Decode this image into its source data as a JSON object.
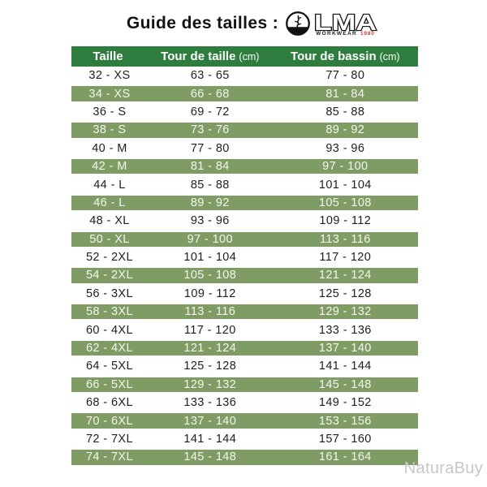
{
  "header": {
    "title": "Guide des tailles :",
    "logo": {
      "name": "LMA",
      "subtext": "WORKWEAR",
      "year": "1980",
      "accent_color": "#d63226"
    }
  },
  "colors": {
    "header_green": "#2e7d3e",
    "row_green": "#7e9c63",
    "row_text_dark": "#1e1e1e",
    "row_text_light": "#f6f6f0",
    "watermark_gray": "#c7c7c7"
  },
  "watermark": "NaturaBuy",
  "chart_data": {
    "type": "table",
    "title": "Guide des tailles",
    "headers": [
      {
        "label": "Taille",
        "unit": ""
      },
      {
        "label": "Tour de taille",
        "unit": "(cm)"
      },
      {
        "label": "Tour de bassin",
        "unit": "(cm)"
      }
    ],
    "rows": [
      [
        "32 - XS",
        "63 - 65",
        "77 - 80"
      ],
      [
        "34 - XS",
        "66 - 68",
        "81 - 84"
      ],
      [
        "36 - S",
        "69 - 72",
        "85 - 88"
      ],
      [
        "38 - S",
        "73 - 76",
        "89 - 92"
      ],
      [
        "40 - M",
        "77 - 80",
        "93 - 96"
      ],
      [
        "42 - M",
        "81 - 84",
        "97 - 100"
      ],
      [
        "44 - L",
        "85 - 88",
        "101 - 104"
      ],
      [
        "46 - L",
        "89 - 92",
        "105 - 108"
      ],
      [
        "48 - XL",
        "93 - 96",
        "109 - 112"
      ],
      [
        "50 - XL",
        "97 - 100",
        "113 - 116"
      ],
      [
        "52 - 2XL",
        "101 - 104",
        "117 - 120"
      ],
      [
        "54 - 2XL",
        "105 - 108",
        "121 - 124"
      ],
      [
        "56 - 3XL",
        "109 - 112",
        "125 - 128"
      ],
      [
        "58 - 3XL",
        "113 - 116",
        "129 - 132"
      ],
      [
        "60 - 4XL",
        "117 - 120",
        "133 - 136"
      ],
      [
        "62 - 4XL",
        "121 - 124",
        "137 - 140"
      ],
      [
        "64 - 5XL",
        "125 - 128",
        "141 - 144"
      ],
      [
        "66 - 5XL",
        "129 - 132",
        "145 - 148"
      ],
      [
        "68 - 6XL",
        "133 - 136",
        "149 - 152"
      ],
      [
        "70 - 6XL",
        "137 - 140",
        "153 - 156"
      ],
      [
        "72 - 7XL",
        "141 - 144",
        "157 - 160"
      ],
      [
        "74 - 7XL",
        "145 - 148",
        "161 - 164"
      ]
    ],
    "row_striping": "alternating white / sage-green starting with white",
    "layout": {
      "header_background": "#2e7d3e",
      "stripe_background": "#7e9c63"
    }
  }
}
